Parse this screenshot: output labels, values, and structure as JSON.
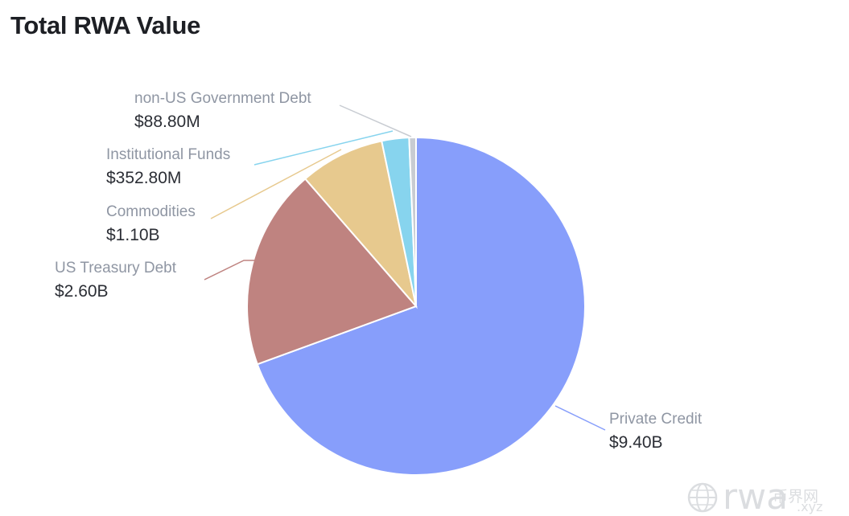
{
  "title": "Total RWA Value",
  "chart_data": {
    "type": "pie",
    "title": "Total RWA Value",
    "start_angle_deg": 0,
    "direction": "clockwise",
    "slices": [
      {
        "label": "Private Credit",
        "value_text": "$9.40B",
        "value": 9400000000,
        "color": "#879efb"
      },
      {
        "label": "US Treasury Debt",
        "value_text": "$2.60B",
        "value": 2600000000,
        "color": "#bf8380"
      },
      {
        "label": "Commodities",
        "value_text": "$1.10B",
        "value": 1100000000,
        "color": "#e7c98e"
      },
      {
        "label": "Institutional Funds",
        "value_text": "$352.80M",
        "value": 352800000,
        "color": "#87d4ee"
      },
      {
        "label": "non-US Government Debt",
        "value_text": "$88.80M",
        "value": 88800000,
        "color": "#c8ccd2"
      }
    ]
  },
  "watermark": {
    "brand": "rwa",
    "sub": ".xyz",
    "cn": "币界网"
  }
}
